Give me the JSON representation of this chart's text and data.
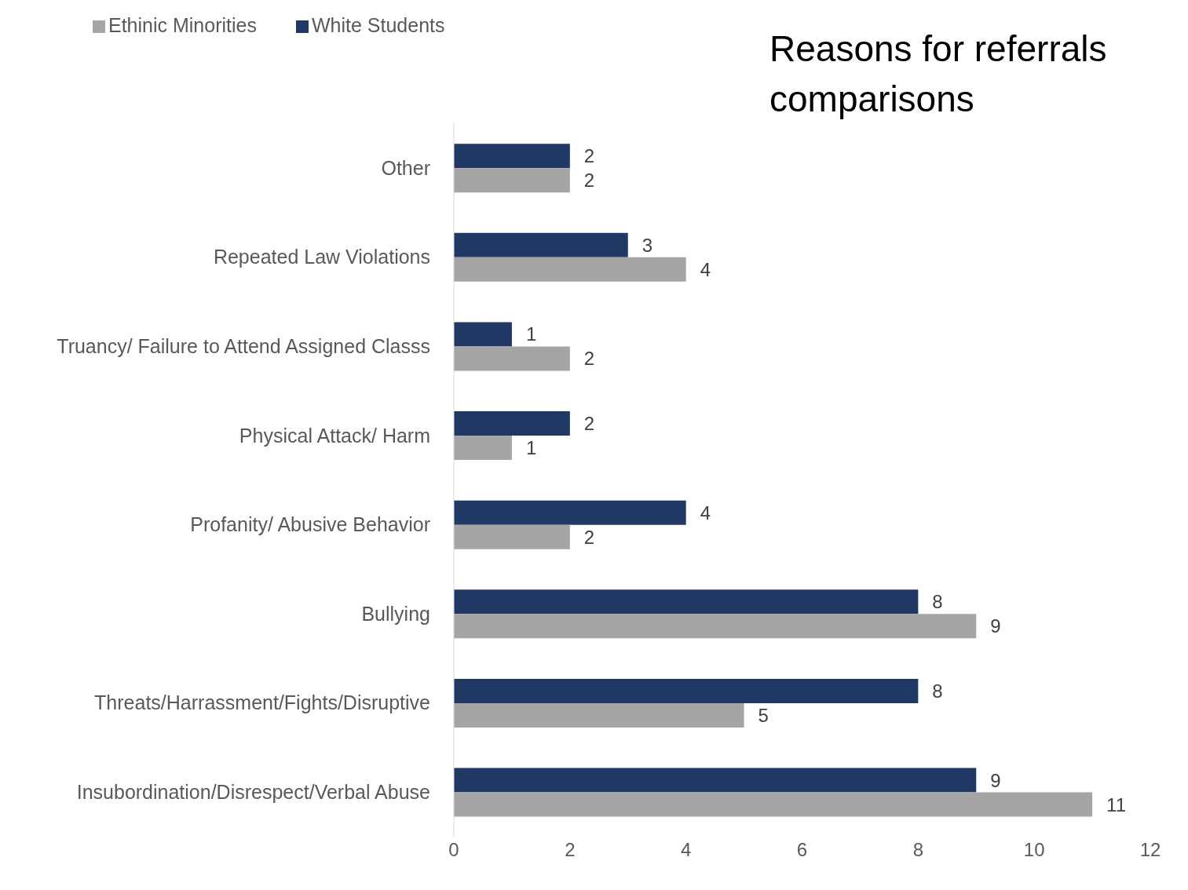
{
  "chart_data": {
    "type": "bar",
    "orientation": "horizontal",
    "title": "Reasons for referrals comparisons",
    "categories": [
      "Other",
      "Repeated Law Violations",
      "Truancy/ Failure to Attend Assigned Classs",
      "Physical Attack/ Harm",
      "Profanity/ Abusive Behavior",
      "Bullying",
      "Threats/Harrassment/Fights/Disruptive",
      "Insubordination/Disrespect/Verbal Abuse"
    ],
    "series": [
      {
        "name": "White Students",
        "color": "#203864",
        "values": [
          2,
          3,
          1,
          2,
          4,
          8,
          8,
          9
        ]
      },
      {
        "name": "Ethinic Minorities",
        "color": "#a5a5a5",
        "values": [
          2,
          4,
          2,
          1,
          2,
          9,
          5,
          11
        ]
      }
    ],
    "xlim": [
      0,
      12
    ],
    "xticks": [
      0,
      2,
      4,
      6,
      8,
      10,
      12
    ],
    "data_labels": true,
    "legend": "top left"
  }
}
